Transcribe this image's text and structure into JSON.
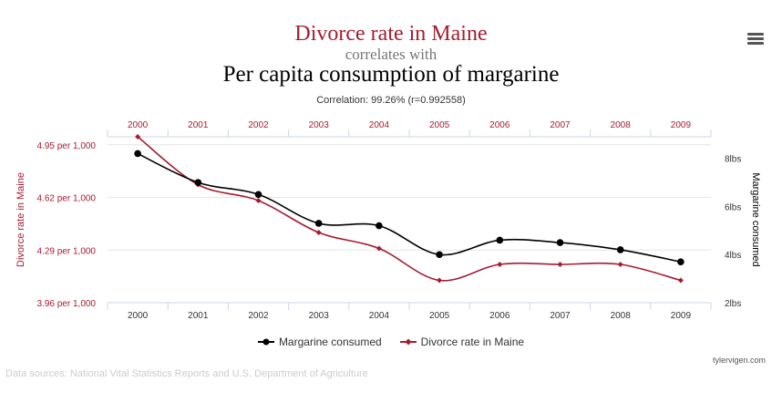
{
  "header": {
    "title": "Divorce rate in Maine",
    "connector": "correlates with",
    "subtitle": "Per capita consumption of margarine",
    "correlation": "Correlation: 99.26% (r=0.992558)"
  },
  "menu_icon": "hamburger-menu-icon",
  "credit": "tylervigen.com",
  "sources": "Data sources: National Vital Statistics Reports and U.S. Department of Agriculture",
  "colors": {
    "divorce": "#a51c30",
    "margarine": "#000000",
    "grid": "#e6e6e6",
    "axis": "#ccd6eb"
  },
  "chart_data": {
    "type": "line",
    "x": [
      "2000",
      "2001",
      "2002",
      "2003",
      "2004",
      "2005",
      "2006",
      "2007",
      "2008",
      "2009"
    ],
    "series": [
      {
        "name": "Margarine consumed",
        "axis": "right",
        "values": [
          8.2,
          7.0,
          6.5,
          5.3,
          5.2,
          4.0,
          4.6,
          4.5,
          4.2,
          3.7
        ]
      },
      {
        "name": "Divorce rate in Maine",
        "axis": "left",
        "values": [
          5.0,
          4.7,
          4.6,
          4.4,
          4.3,
          4.1,
          4.2,
          4.2,
          4.2,
          4.1
        ]
      }
    ],
    "y_left": {
      "label": "Divorce rate in Maine",
      "ticks": [
        {
          "value": 4.95,
          "label": "4.95 per 1,000"
        },
        {
          "value": 4.62,
          "label": "4.62 per 1,000"
        },
        {
          "value": 4.29,
          "label": "4.29 per 1,000"
        },
        {
          "value": 3.96,
          "label": "3.96 per 1,000"
        }
      ],
      "range": [
        3.96,
        5.0
      ]
    },
    "y_right": {
      "label": "Margarine consumed",
      "ticks": [
        {
          "value": 8,
          "label": "8lbs"
        },
        {
          "value": 6,
          "label": "6lbs"
        },
        {
          "value": 4,
          "label": "4lbs"
        },
        {
          "value": 2,
          "label": "2lbs"
        }
      ],
      "range": [
        2,
        8.9
      ]
    },
    "grid": true,
    "legend": "bottom-center"
  }
}
